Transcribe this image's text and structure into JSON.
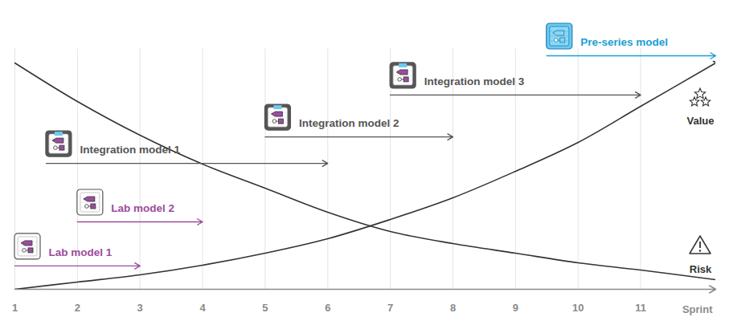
{
  "chart_data": {
    "type": "line",
    "xlabel": "Sprint",
    "x": [
      1,
      2,
      3,
      4,
      5,
      6,
      7,
      8,
      9,
      10,
      11,
      12.2
    ],
    "xlim": [
      1,
      12.2
    ],
    "xticks": [
      1,
      2,
      3,
      4,
      5,
      6,
      7,
      8,
      9,
      10,
      11
    ],
    "ylim": [
      0,
      10
    ],
    "tick_labels": "x",
    "grid": true,
    "series": [
      {
        "name": "Value",
        "color": "#333333",
        "marker": "arrow",
        "values": [
          0,
          0.3,
          0.6,
          1.0,
          1.5,
          2.1,
          2.9,
          3.8,
          4.9,
          6.1,
          7.6,
          9.4
        ]
      },
      {
        "name": "Risk",
        "color": "#333333",
        "values": [
          9.4,
          7.8,
          6.4,
          5.2,
          4.2,
          3.2,
          2.4,
          1.9,
          1.5,
          1.1,
          0.8,
          0.4
        ]
      }
    ],
    "models": [
      {
        "name": "Lab model 1",
        "start": 1,
        "end": 3,
        "y": 0.97,
        "color": "#9c4c9e"
      },
      {
        "name": "Lab model 2",
        "start": 2,
        "end": 4,
        "y": 2.8,
        "color": "#9c4c9e"
      },
      {
        "name": "Integration model 1",
        "start": 1.5,
        "end": 6,
        "y": 5.23,
        "color": "#555555"
      },
      {
        "name": "Integration model 2",
        "start": 5,
        "end": 8,
        "y": 6.33,
        "color": "#555555"
      },
      {
        "name": "Integration model 3",
        "start": 7,
        "end": 11,
        "y": 8.07,
        "color": "#555555"
      },
      {
        "name": "Pre-series model",
        "start": 9.5,
        "end": 12.2,
        "y": 9.7,
        "color": "#1a9fd4"
      }
    ]
  }
}
